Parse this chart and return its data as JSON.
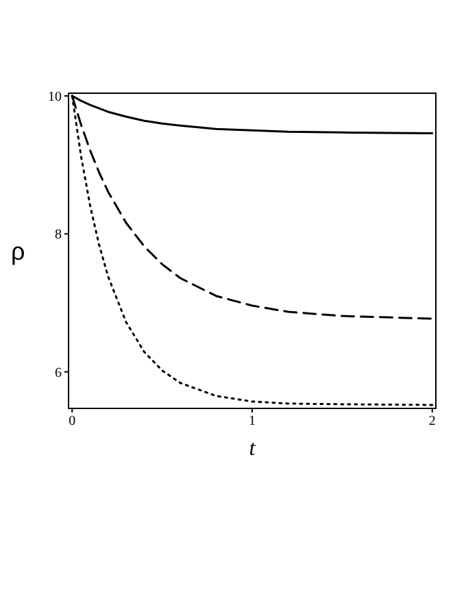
{
  "chart_data": {
    "type": "line",
    "xlabel": "t",
    "ylabel": "ρ",
    "x": [
      0,
      0.05,
      0.1,
      0.15,
      0.2,
      0.3,
      0.4,
      0.5,
      0.6,
      0.8,
      1,
      1.2,
      1.5,
      2
    ],
    "series": [
      {
        "color": "#000000",
        "line_style": "solid",
        "values": [
          10,
          9.93,
          9.87,
          9.82,
          9.77,
          9.7,
          9.64,
          9.6,
          9.57,
          9.52,
          9.5,
          9.48,
          9.47,
          9.46
        ]
      },
      {
        "color": "#000000",
        "line_style": "dashed",
        "values": [
          10,
          9.58,
          9.21,
          8.89,
          8.61,
          8.16,
          7.82,
          7.56,
          7.36,
          7.1,
          6.96,
          6.87,
          6.81,
          6.77
        ]
      },
      {
        "color": "#000000",
        "line_style": "dotted",
        "values": [
          10,
          9.12,
          8.41,
          7.84,
          7.38,
          6.72,
          6.29,
          6.02,
          5.84,
          5.65,
          5.57,
          5.54,
          5.53,
          5.52
        ]
      }
    ],
    "xlim": [
      -0.02,
      2.02
    ],
    "ylim": [
      5.47,
      10.04
    ],
    "xticks": [
      0,
      1,
      2
    ],
    "yticks": [
      6,
      8,
      10
    ],
    "grid": false,
    "legend": false,
    "marker": "none"
  }
}
